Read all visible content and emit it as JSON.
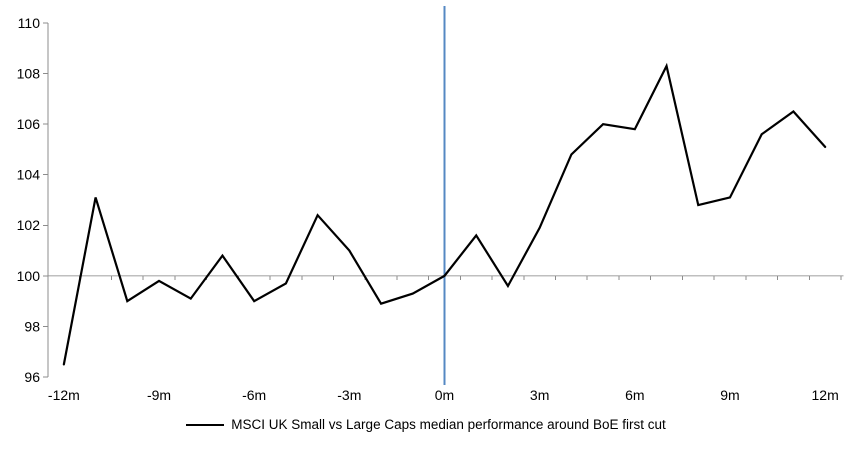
{
  "chart_data": {
    "type": "line",
    "legend_position": "bottom",
    "x_months": [
      -12,
      -11,
      -10,
      -9,
      -8,
      -7,
      -6,
      -5,
      -4,
      -3,
      -2,
      -1,
      0,
      1,
      2,
      3,
      4,
      5,
      6,
      7,
      8,
      9,
      10,
      11,
      12
    ],
    "series": [
      {
        "name": "MSCI UK Small vs Large Caps median performance around BoE first cut",
        "values": [
          96.5,
          103.1,
          99.0,
          99.8,
          99.1,
          100.8,
          99.0,
          99.7,
          102.4,
          101.0,
          98.9,
          99.3,
          100.0,
          101.6,
          99.6,
          101.9,
          104.8,
          106.0,
          105.8,
          108.3,
          102.8,
          103.1,
          105.6,
          106.5,
          105.1
        ]
      }
    ],
    "x_tick_months": [
      -12,
      -9,
      -6,
      -3,
      0,
      3,
      6,
      9,
      12
    ],
    "x_tick_labels": [
      "-12m",
      "-9m",
      "-6m",
      "-3m",
      "0m",
      "3m",
      "6m",
      "9m",
      "12m"
    ],
    "y_ticks": [
      96,
      98,
      100,
      102,
      104,
      106,
      108,
      110
    ],
    "ylim": [
      96,
      110
    ],
    "baseline_value": 100,
    "event_line_x": 0,
    "grid": "off",
    "colors": {
      "series": "#000000",
      "event_line": "#5588c3",
      "baseline": "#bfbfbf",
      "axis": "#8c8c8c",
      "text": "#000000"
    }
  }
}
